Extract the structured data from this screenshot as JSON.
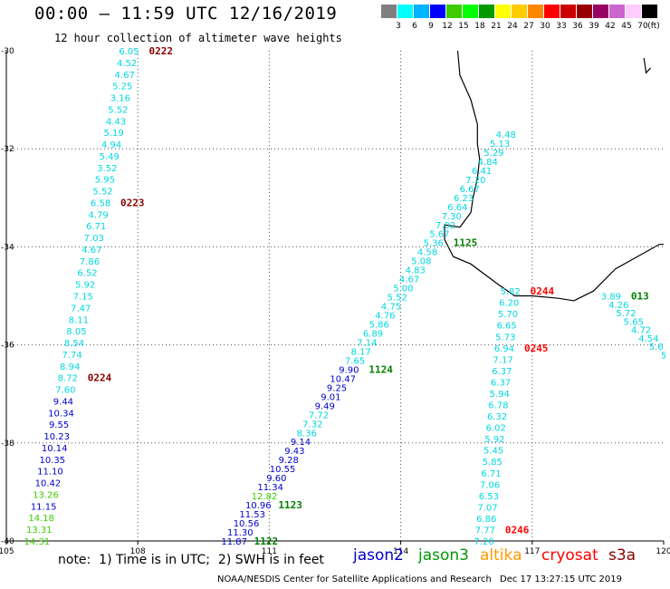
{
  "header": {
    "title": "00:00 – 11:59 UTC 12/16/2019",
    "subtitle": "12 hour collection of altimeter wave heights"
  },
  "color_scale": {
    "unit": "(ft)",
    "items": [
      {
        "label": "3",
        "color": "#7f7f7f"
      },
      {
        "label": "6",
        "color": "#00ffff"
      },
      {
        "label": "9",
        "color": "#00b4ff"
      },
      {
        "label": "12",
        "color": "#0000ff"
      },
      {
        "label": "15",
        "color": "#3ccc00"
      },
      {
        "label": "18",
        "color": "#00ff00"
      },
      {
        "label": "21",
        "color": "#009900"
      },
      {
        "label": "24",
        "color": "#ffff00"
      },
      {
        "label": "27",
        "color": "#ffcc00"
      },
      {
        "label": "30",
        "color": "#ff8800"
      },
      {
        "label": "33",
        "color": "#ff0000"
      },
      {
        "label": "36",
        "color": "#cc0000"
      },
      {
        "label": "39",
        "color": "#990000"
      },
      {
        "label": "42",
        "color": "#990066"
      },
      {
        "label": "45",
        "color": "#cc66cc"
      },
      {
        "label": "70",
        "color": "#ffccff"
      },
      {
        "label": "",
        "color": "#000000"
      }
    ]
  },
  "axes": {
    "x_ticks": [
      "105",
      "108",
      "111",
      "114",
      "117",
      "120"
    ],
    "y_ticks": [
      "-30",
      "-32",
      "-34",
      "-36",
      "-38",
      "-40"
    ]
  },
  "tracks": [
    {
      "id": "0222",
      "time_color": "#8b0000",
      "lon_start": 107.8,
      "lat_start": -30.0,
      "lon_end": 105.7,
      "lat_end": -40.0,
      "values": [
        "6.05",
        "4.52",
        "4.67",
        "5.25",
        "3.16",
        "5.52",
        "4.43",
        "5.19",
        "4.94",
        "5.49",
        "3.52",
        "5.95",
        "5.52",
        "6.58",
        "4.79",
        "6.71",
        "7.03",
        "4.67",
        "7.86",
        "6.52",
        "5.92",
        "7.15",
        "7.47",
        "8.11",
        "8.05",
        "8.54",
        "7.74",
        "8.94",
        "8.72",
        "7.60",
        "9.44",
        "10.34",
        "9.55",
        "10.23",
        "10.14",
        "10.35",
        "11.10",
        "10.42",
        "13.26",
        "11.15",
        "14.18",
        "13.31",
        "14.31"
      ],
      "labels": [
        {
          "text": "0222",
          "at": 0
        },
        {
          "text": "0223",
          "at": 13
        },
        {
          "text": "0224",
          "at": 28
        }
      ]
    },
    {
      "id": "1122",
      "time_color": "#008000",
      "lon_start": 116.4,
      "lat_start": -31.7,
      "lon_end": 110.2,
      "lat_end": -40.0,
      "values": [
        "4.48",
        "5.13",
        "5.29",
        "4.84",
        "6.41",
        "7.20",
        "6.67",
        "6.23",
        "6.64",
        "7.30",
        "7.02",
        "5.67",
        "5.36",
        "4.58",
        "5.08",
        "4.83",
        "4.67",
        "5.00",
        "5.52",
        "4.75",
        "4.76",
        "5.86",
        "6.89",
        "7.14",
        "8.17",
        "7.65",
        "9.90",
        "10.47",
        "9.25",
        "9.01",
        "9.49",
        "7.72",
        "7.32",
        "8.36",
        "9.14",
        "9.43",
        "9.28",
        "10.55",
        "9.60",
        "11.34",
        "12.82",
        "10.96",
        "11.53",
        "10.56",
        "11.30",
        "11.87"
      ],
      "labels": [
        {
          "text": "1125",
          "at": 12
        },
        {
          "text": "1124",
          "at": 26
        },
        {
          "text": "1123",
          "at": 41
        },
        {
          "text": "1122",
          "at": 45
        }
      ]
    },
    {
      "id": "0244",
      "time_color": "#ff0000",
      "lon_start": 116.5,
      "lat_start": -34.9,
      "lon_end": 115.9,
      "lat_end": -40.0,
      "values": [
        "5.82",
        "6.20",
        "5.70",
        "6.65",
        "5.73",
        "6.94",
        "7.17",
        "6.37",
        "6.37",
        "5.94",
        "6.78",
        "6.32",
        "6.02",
        "5.92",
        "5.45",
        "5.85",
        "6.71",
        "7.06",
        "6.53",
        "7.07",
        "6.86",
        "7.77",
        "7.20"
      ],
      "labels": [
        {
          "text": "0244",
          "at": 0
        },
        {
          "text": "0245",
          "at": 5
        },
        {
          "text": "0246",
          "at": 21
        }
      ]
    },
    {
      "id": "0130",
      "time_color": "#008000",
      "lon_start": 118.8,
      "lat_start": -35.0,
      "lon_end": 120.0,
      "lat_end": -36.2,
      "values": [
        "3.89",
        "4.26",
        "5.72",
        "5.65",
        "4.72",
        "4.54",
        "5.6",
        "5"
      ],
      "labels": [
        {
          "text": "013",
          "at": 0
        }
      ]
    }
  ],
  "notes": {
    "text": "note:  1) Time is in UTC;  2) SWH is in feet",
    "satellites": [
      {
        "name": "jason2",
        "color": "#0000cc"
      },
      {
        "name": "jason3",
        "color": "#009900"
      },
      {
        "name": "altika",
        "color": "#ff9900"
      },
      {
        "name": "cryosat",
        "color": "#ff0000"
      },
      {
        "name": "s3a",
        "color": "#8b0000"
      }
    ]
  },
  "footer": {
    "credit": "NOAA/NESDIS Center for Satellite Applications and Research",
    "timestamp": "Dec 17 13:27:15 UTC 2019"
  }
}
